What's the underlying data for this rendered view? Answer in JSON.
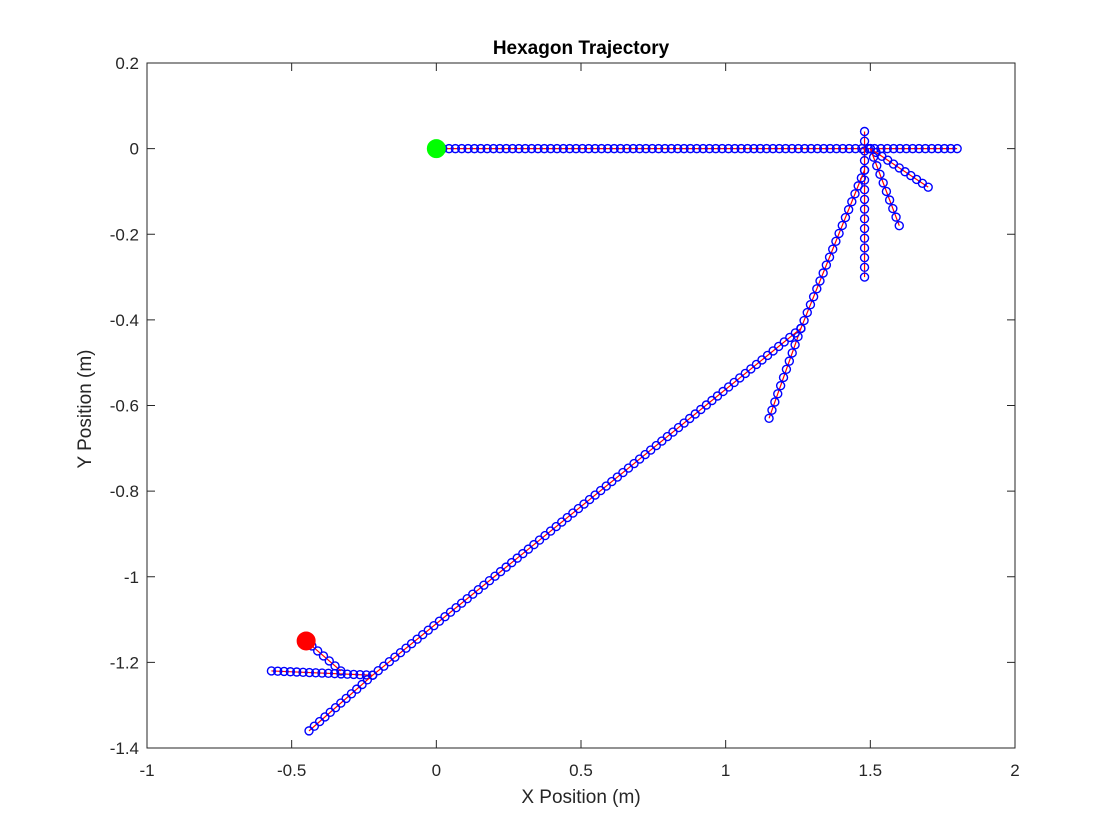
{
  "chart_data": {
    "type": "scatter",
    "title": "Hexagon Trajectory",
    "xlabel": "X Position (m)",
    "ylabel": "Y Position (m)",
    "xlim": [
      -1,
      2
    ],
    "ylim": [
      -1.4,
      0.2
    ],
    "xticks": [
      "-1",
      "-0.5",
      "0",
      "0.5",
      "1",
      "1.5",
      "2"
    ],
    "yticks": [
      "0.2",
      "0",
      "-0.2",
      "-0.4",
      "-0.6",
      "-0.8",
      "-1",
      "-1.2",
      "-1.4"
    ],
    "grid": false,
    "box": true,
    "series": [
      {
        "style": "blue-circle-markers",
        "color": "#0000ff",
        "segments": [
          [
            [
              0,
              0
            ],
            [
              1.8,
              0
            ]
          ],
          [
            [
              1.5,
              0
            ],
            [
              1.7,
              -0.09
            ]
          ],
          [
            [
              1.5,
              0
            ],
            [
              1.6,
              -0.18
            ]
          ],
          [
            [
              1.48,
              0.04
            ],
            [
              1.48,
              -0.3
            ]
          ],
          [
            [
              1.48,
              -0.05
            ],
            [
              1.26,
              -0.42
            ]
          ],
          [
            [
              1.26,
              -0.42
            ],
            [
              1.15,
              -0.63
            ]
          ],
          [
            [
              1.26,
              -0.42
            ],
            [
              -0.22,
              -1.23
            ]
          ],
          [
            [
              -0.22,
              -1.23
            ],
            [
              -0.57,
              -1.22
            ]
          ],
          [
            [
              -0.22,
              -1.23
            ],
            [
              -0.44,
              -1.36
            ]
          ],
          [
            [
              -0.33,
              -1.22
            ],
            [
              -0.45,
              -1.15
            ]
          ]
        ]
      }
    ],
    "markers": [
      {
        "x": 0,
        "y": 0,
        "color": "#00ff00"
      },
      {
        "x": -0.45,
        "y": -1.15,
        "color": "#ff0000"
      }
    ]
  }
}
